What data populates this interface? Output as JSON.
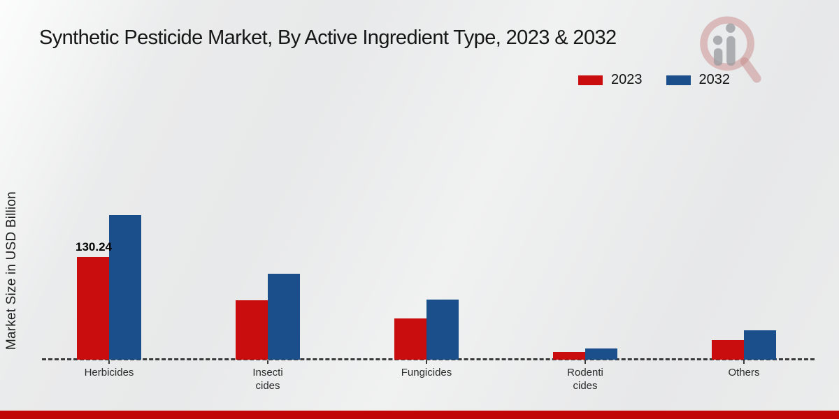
{
  "title": "Synthetic Pesticide Market, By Active Ingredient Type, 2023 & 2032",
  "ylabel": "Market Size in USD Billion",
  "legend": [
    {
      "label": "2023",
      "color": "#c90d0e"
    },
    {
      "label": "2032",
      "color": "#1b4f8c"
    }
  ],
  "colors": {
    "bar_2023": "#c90d0e",
    "bar_2032": "#1b4f8c",
    "footer_bar": "#c00607",
    "baseline": "#3a3a3a",
    "background": "#e9eaea"
  },
  "watermark_icon": "magnifier-logo",
  "chart_data": {
    "type": "bar",
    "title": "Synthetic Pesticide Market, By Active Ingredient Type, 2023 & 2032",
    "ylabel": "Market Size in USD Billion",
    "xlabel": "",
    "categories": [
      "Herbicides",
      "Insecticides",
      "Fungicides",
      "Rodenticides",
      "Others"
    ],
    "category_display": [
      "Herbicides",
      "Insecti\ncides",
      "Fungicides",
      "Rodenti\ncides",
      "Others"
    ],
    "series": [
      {
        "name": "2023",
        "color": "#c90d0e",
        "values": [
          130.24,
          75.5,
          52,
          10,
          25
        ]
      },
      {
        "name": "2032",
        "color": "#1b4f8c",
        "values": [
          183,
          109,
          76.5,
          14.5,
          37
        ]
      }
    ],
    "bar_labels": [
      {
        "category_index": 0,
        "series_index": 0,
        "text": "130.24"
      }
    ],
    "ylim": [
      0,
      200
    ],
    "y_axis_ticks_visible": false,
    "grid": false,
    "baseline_style": "dashed",
    "legend_position": "top-right"
  }
}
